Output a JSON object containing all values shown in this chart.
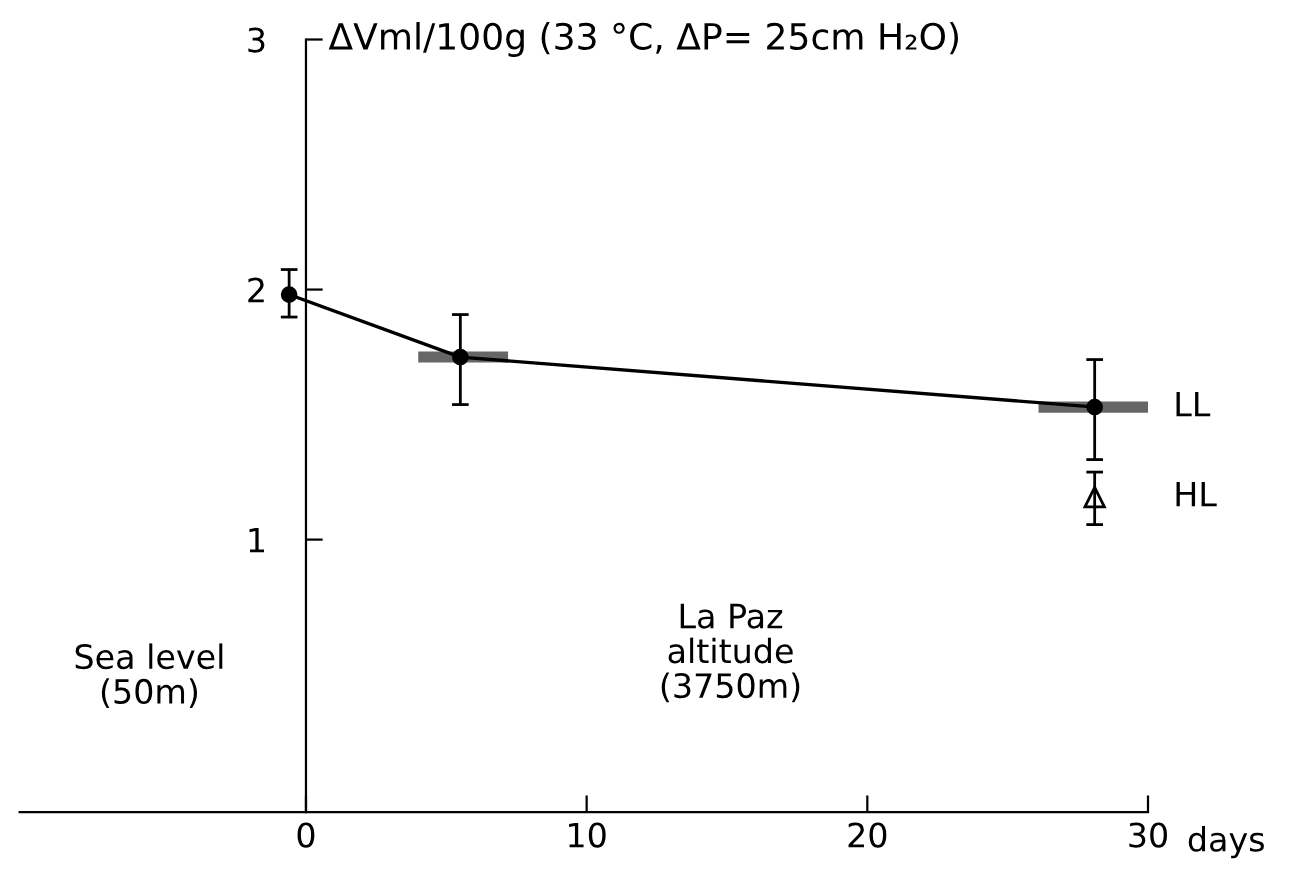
{
  "chart_data": {
    "type": "line",
    "ylabel": "ΔVml/100g (33 °C, ΔP= 25cm H₂O)",
    "xlabel": "days",
    "series": [
      {
        "name": "LL",
        "color": "#000000",
        "x": [
          -0.6,
          5.5,
          28.1
        ],
        "values": [
          1.98,
          1.73,
          1.53
        ],
        "errors": [
          [
            1.89,
            2.08
          ],
          [
            1.54,
            1.9
          ],
          [
            1.32,
            1.72
          ]
        ],
        "xerrors": [
          null,
          [
            4.0,
            7.2
          ],
          [
            26.1,
            30.1
          ]
        ],
        "marker": "circle",
        "line_style": "solid"
      },
      {
        "name": "HL",
        "type": "scatter",
        "color": "#000000",
        "x": [
          28.1
        ],
        "values": [
          1.17
        ],
        "errors": [
          [
            1.06,
            1.27
          ]
        ],
        "marker": "triangle"
      }
    ],
    "xlim": [
      -10.2,
      30
    ],
    "ylim": [
      -0.09,
      3
    ],
    "xticks": [
      0,
      10,
      20,
      30
    ],
    "yticks": [
      1,
      2,
      3
    ],
    "annotations": [
      "Sea level\n(50m)",
      "La Paz\naltitude\n(3750m)"
    ],
    "grid": false,
    "legend": false
  }
}
